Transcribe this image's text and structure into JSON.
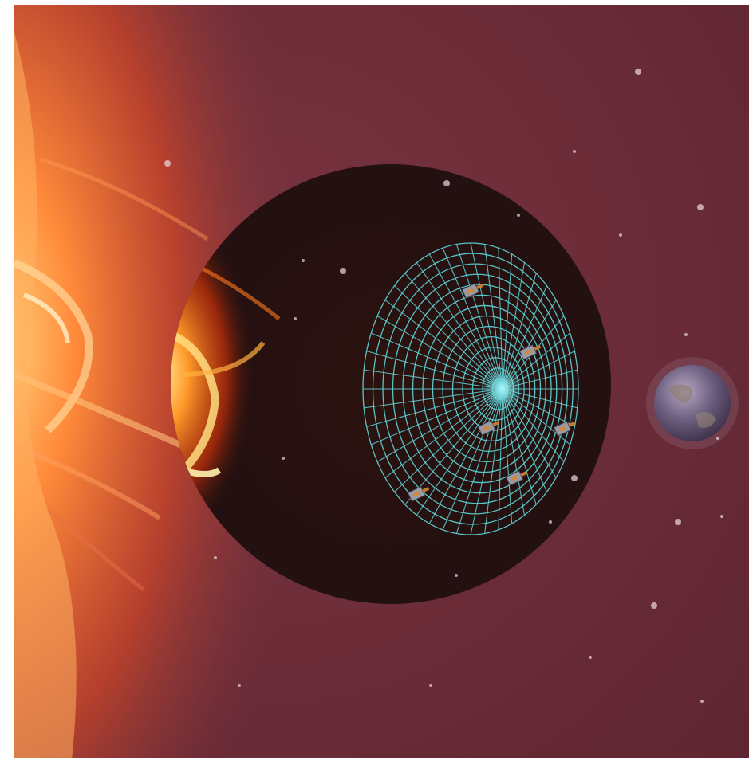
{
  "scene": {
    "background_color": "#6e2e38",
    "lens_color": "#2a1210",
    "grid_color": "#5fd6d8",
    "planet_color": "#7a6a8a",
    "sun_colors": [
      "#ff6a1a",
      "#ffb347",
      "#ffe28a"
    ],
    "elements": {
      "sun": "sun-corona-image",
      "lens": "dark-circular-inset",
      "grid": "concentric-mesh-disk",
      "satellites": "satellite-icons",
      "planet": "earth-planet"
    }
  }
}
